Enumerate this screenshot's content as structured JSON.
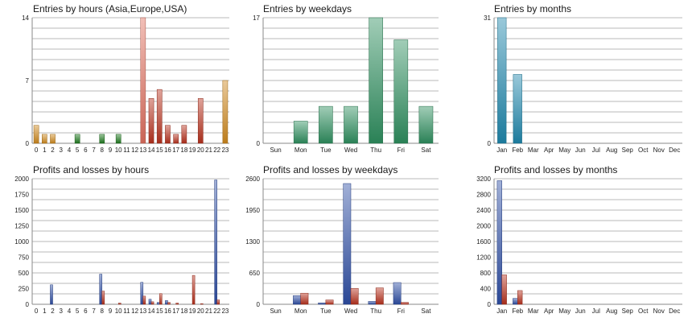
{
  "colors": {
    "orange": "#d08a1e",
    "green": "#1e7a1e",
    "red": "#b8321e",
    "teal": "#2f8f5f",
    "cyan": "#1f88ad",
    "blue": "#2f4fa5",
    "highlight_hour": "#e07060"
  },
  "chart_data": [
    {
      "type": "bar",
      "title": "Entries by hours (Asia,Europe,USA)",
      "categories": [
        "0",
        "1",
        "2",
        "3",
        "4",
        "5",
        "6",
        "7",
        "8",
        "9",
        "10",
        "11",
        "12",
        "13",
        "14",
        "15",
        "16",
        "17",
        "18",
        "19",
        "20",
        "21",
        "22",
        "23"
      ],
      "values": [
        2,
        1,
        1,
        0,
        0,
        1,
        0,
        0,
        1,
        0,
        1,
        0,
        0,
        14,
        5,
        6,
        2,
        1,
        2,
        0,
        5,
        0,
        0,
        7
      ],
      "bar_colors": [
        "orange",
        "orange",
        "orange",
        "orange",
        "orange",
        "green",
        "green",
        "green",
        "green",
        "green",
        "green",
        "green",
        "green",
        "red",
        "red",
        "red",
        "red",
        "red",
        "red",
        "red",
        "red",
        "orange",
        "orange",
        "orange"
      ],
      "ylim": [
        0,
        14
      ],
      "yticks": [
        "0",
        "7",
        "14"
      ],
      "grid": true
    },
    {
      "type": "bar",
      "title": "Entries by weekdays",
      "categories": [
        "Sun",
        "Mon",
        "Tue",
        "Wed",
        "Thu",
        "Fri",
        "Sat"
      ],
      "values": [
        0,
        3,
        5,
        5,
        17,
        14,
        5
      ],
      "ylim": [
        0,
        17
      ],
      "yticks": [
        "0",
        "17"
      ],
      "grid": true
    },
    {
      "type": "bar",
      "title": "Entries by months",
      "categories": [
        "Jan",
        "Feb",
        "Mar",
        "Apr",
        "May",
        "Jun",
        "Jul",
        "Aug",
        "Sep",
        "Oct",
        "Nov",
        "Dec"
      ],
      "values": [
        31,
        17,
        0,
        0,
        0,
        0,
        0,
        0,
        0,
        0,
        0,
        0
      ],
      "ylim": [
        0,
        31
      ],
      "yticks": [
        "0",
        "31"
      ],
      "grid": true
    },
    {
      "type": "bar",
      "title": "Profits and losses by hours",
      "categories": [
        "0",
        "1",
        "2",
        "3",
        "4",
        "5",
        "6",
        "7",
        "8",
        "9",
        "10",
        "11",
        "12",
        "13",
        "14",
        "15",
        "16",
        "17",
        "18",
        "19",
        "20",
        "21",
        "22",
        "23"
      ],
      "series": [
        {
          "color": "blue",
          "values": [
            0,
            0,
            310,
            0,
            0,
            0,
            0,
            0,
            480,
            0,
            0,
            0,
            0,
            350,
            80,
            30,
            60,
            0,
            0,
            0,
            0,
            0,
            1980,
            0
          ]
        },
        {
          "color": "red",
          "values": [
            0,
            0,
            0,
            0,
            0,
            0,
            0,
            0,
            210,
            0,
            20,
            0,
            0,
            130,
            40,
            170,
            30,
            20,
            0,
            460,
            10,
            0,
            70,
            0
          ]
        }
      ],
      "ylim": [
        0,
        2000
      ],
      "yticks": [
        "0",
        "250",
        "500",
        "750",
        "1000",
        "1250",
        "1500",
        "1750",
        "2000"
      ],
      "grid": true
    },
    {
      "type": "bar",
      "title": "Profits and losses by weekdays",
      "categories": [
        "Sun",
        "Mon",
        "Tue",
        "Wed",
        "Thu",
        "Fri",
        "Sat"
      ],
      "series": [
        {
          "color": "blue",
          "values": [
            0,
            180,
            30,
            2500,
            60,
            450,
            0
          ]
        },
        {
          "color": "red",
          "values": [
            0,
            230,
            90,
            330,
            340,
            40,
            0
          ]
        }
      ],
      "ylim": [
        0,
        2600
      ],
      "yticks": [
        "0",
        "650",
        "1300",
        "1950",
        "2600"
      ],
      "grid": true
    },
    {
      "type": "bar",
      "title": "Profits and losses by months",
      "categories": [
        "Jan",
        "Feb",
        "Mar",
        "Apr",
        "May",
        "Jun",
        "Jul",
        "Aug",
        "Sep",
        "Oct",
        "Nov",
        "Dec"
      ],
      "series": [
        {
          "color": "blue",
          "values": [
            3150,
            150,
            0,
            0,
            0,
            0,
            0,
            0,
            0,
            0,
            0,
            0
          ]
        },
        {
          "color": "red",
          "values": [
            750,
            350,
            0,
            0,
            0,
            0,
            0,
            0,
            0,
            0,
            0,
            0
          ]
        }
      ],
      "ylim": [
        0,
        3200
      ],
      "yticks": [
        "0",
        "400",
        "800",
        "1200",
        "1600",
        "2000",
        "2400",
        "2800",
        "3200"
      ],
      "grid": true
    }
  ]
}
